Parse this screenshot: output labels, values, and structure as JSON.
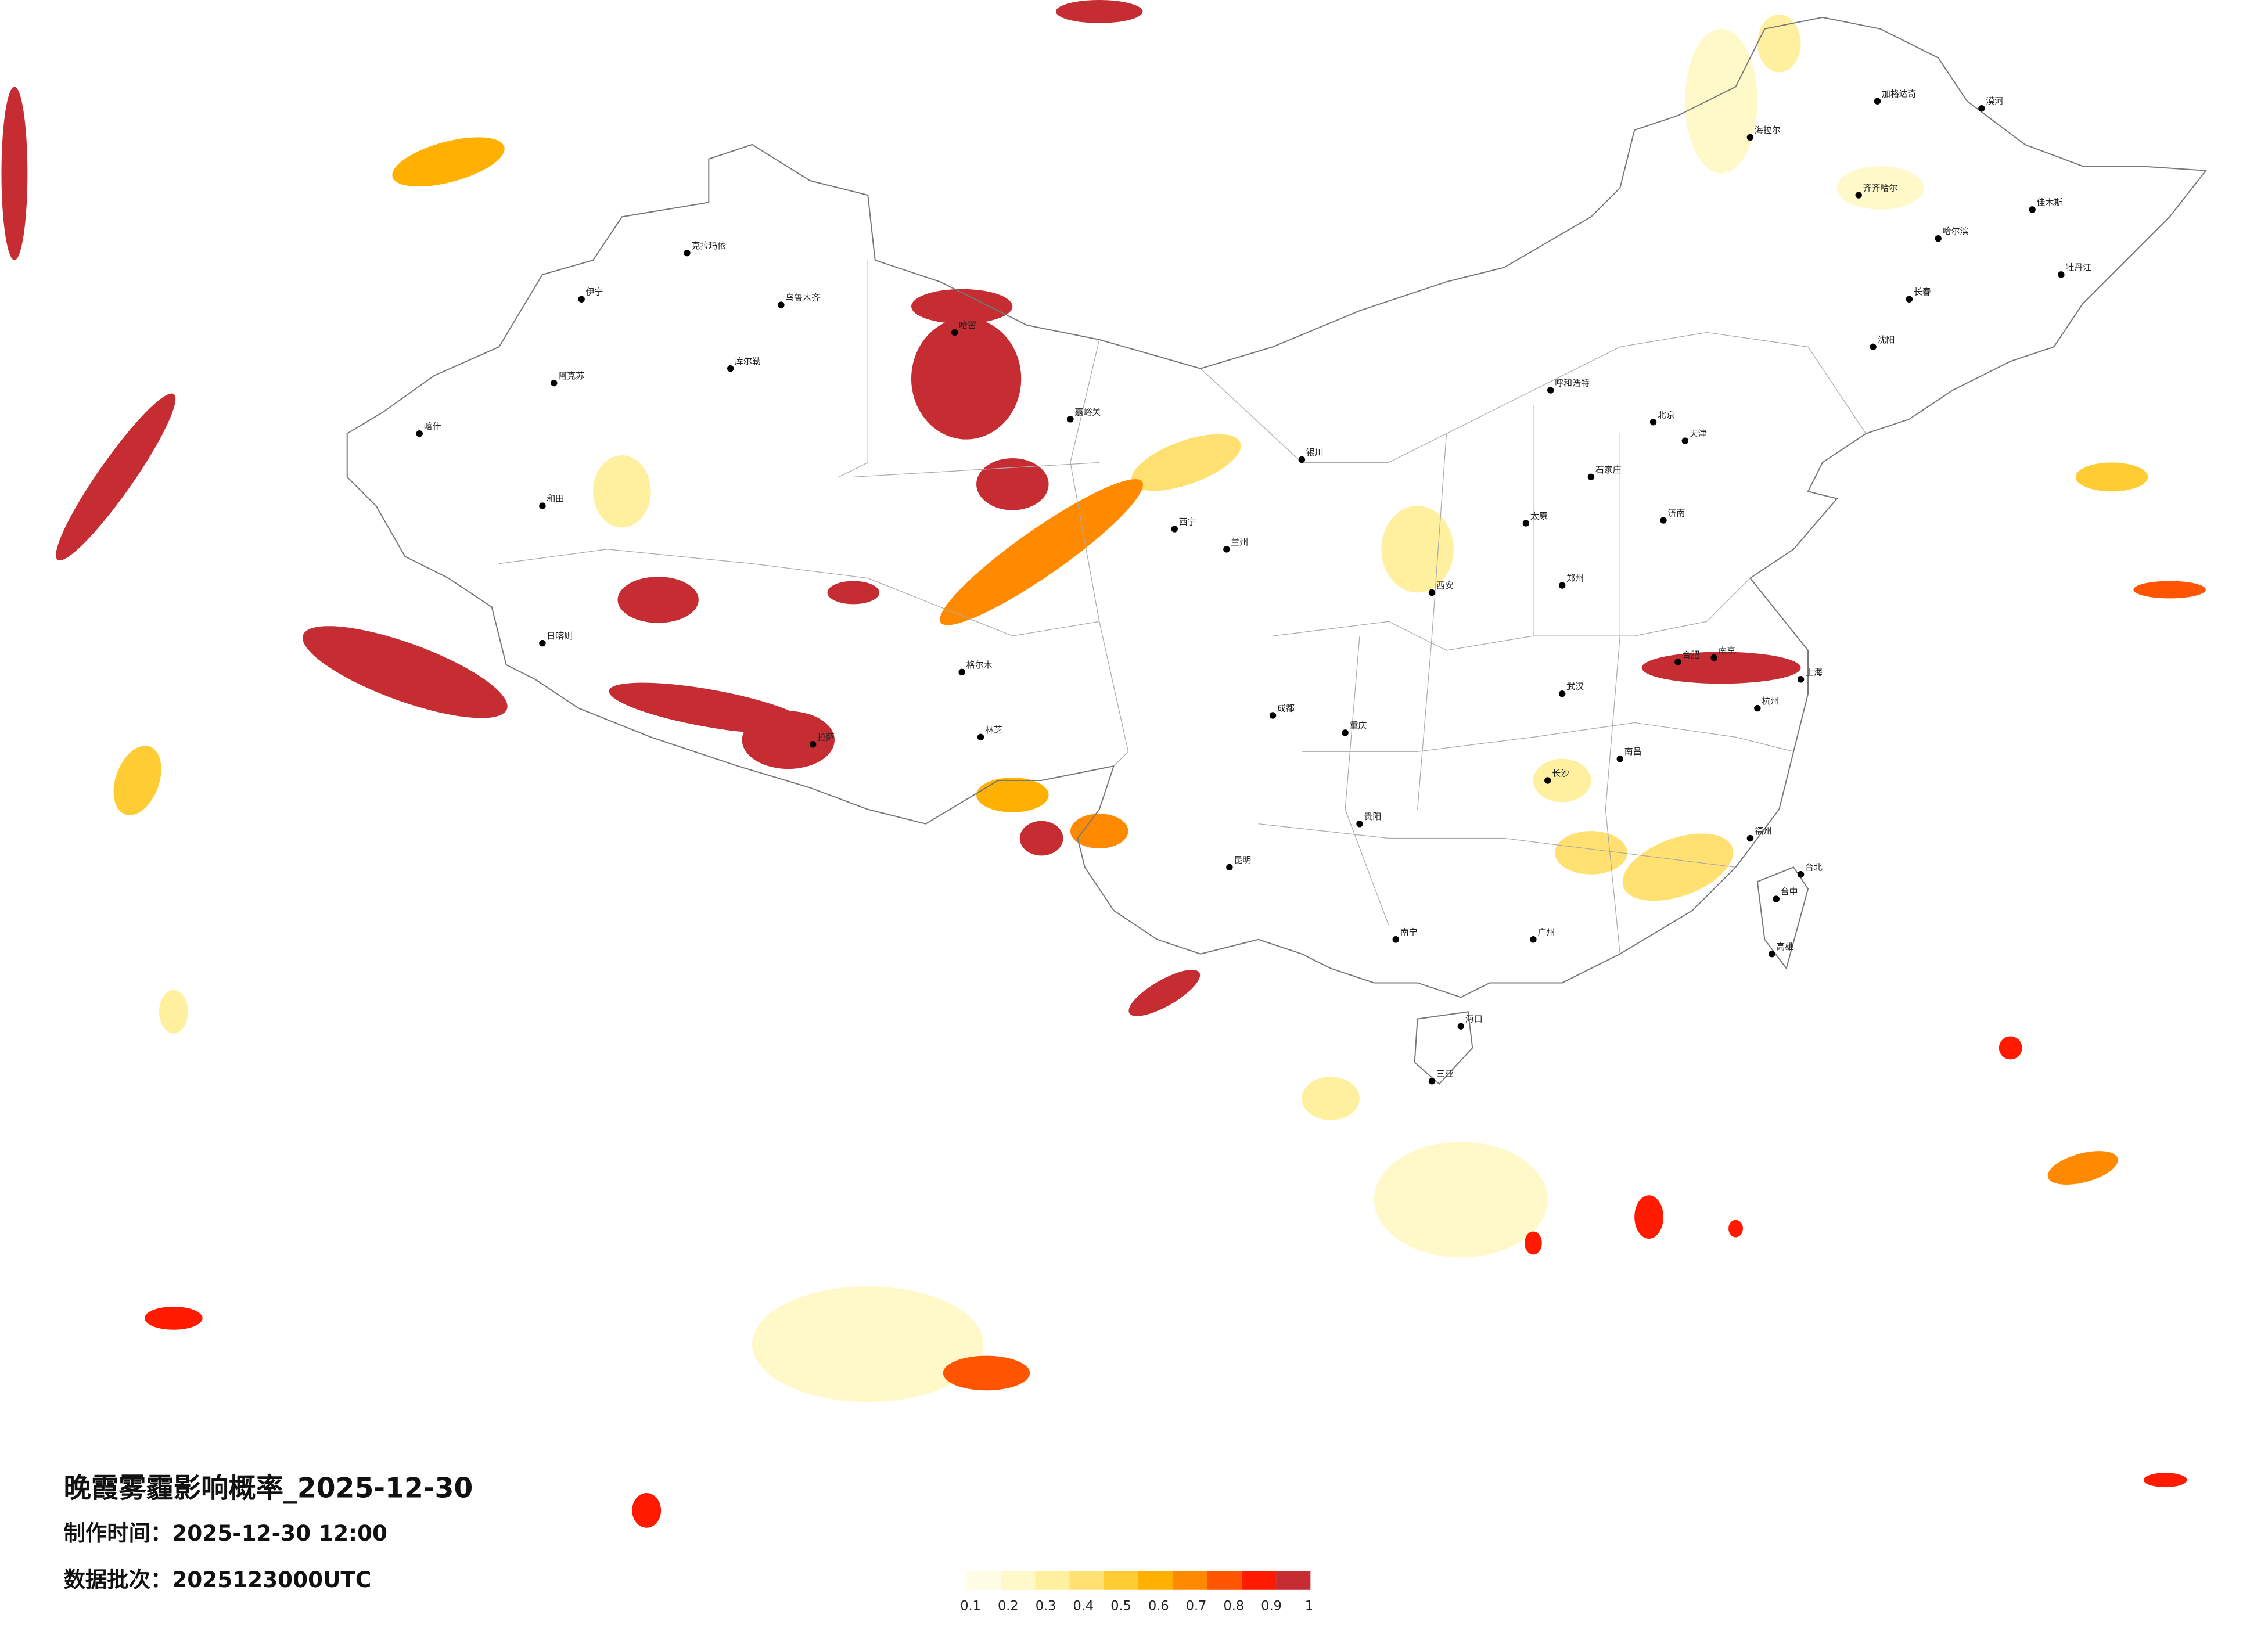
{
  "title": "晚霞雾霾影响概率_2025-12-30",
  "made_time": "制作时间：2025-12-30 12:00",
  "batch": "数据批次：2025123000UTC",
  "legend": {
    "colors": [
      "#fffde6",
      "#fff8c8",
      "#fff0a0",
      "#ffe070",
      "#ffcc33",
      "#ffb000",
      "#ff8a00",
      "#ff5500",
      "#ff1a00",
      "#c62d33"
    ],
    "ticks": [
      0.1,
      0.2,
      0.3,
      0.4,
      0.5,
      0.6,
      0.7,
      0.8,
      0.9,
      1
    ]
  },
  "cities": [
    "北京",
    "天津",
    "石家庄",
    "太原",
    "呼和浩特",
    "济南",
    "郑州",
    "西安",
    "兰州",
    "西宁",
    "银川",
    "乌鲁木齐",
    "拉萨",
    "成都",
    "重庆",
    "贵阳",
    "昆明",
    "南宁",
    "广州",
    "福州",
    "杭州",
    "上海",
    "南京",
    "合肥",
    "武汉",
    "长沙",
    "南昌",
    "哈尔滨",
    "长春",
    "沈阳",
    "海口",
    "三亚",
    "台北",
    "台中",
    "高雄",
    "和田",
    "喀什",
    "阿克苏",
    "伊宁",
    "克拉玛依",
    "库尔勒",
    "哈密",
    "嘉峪关",
    "格尔木",
    "日喀则",
    "林芝",
    "漠河",
    "加格达奇",
    "海拉尔",
    "齐齐哈尔",
    "佳木斯",
    "牡丹江"
  ]
}
